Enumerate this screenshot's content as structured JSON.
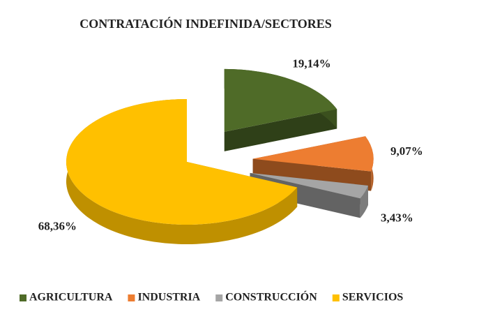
{
  "chart_data": {
    "type": "pie",
    "title": "CONTRATACIÓN INDEFINIDA/SECTORES",
    "categories": [
      "AGRICULTURA",
      "INDUSTRIA",
      "CONSTRUCCIÓN",
      "SERVICIOS"
    ],
    "values": [
      19.14,
      9.07,
      3.43,
      68.36
    ],
    "value_labels": [
      "19,14%",
      "9,07%",
      "3,43%",
      "68,36%"
    ],
    "colors": [
      "#4f6b28",
      "#ed7d31",
      "#a5a5a5",
      "#ffc000"
    ],
    "legend": "bottom"
  }
}
